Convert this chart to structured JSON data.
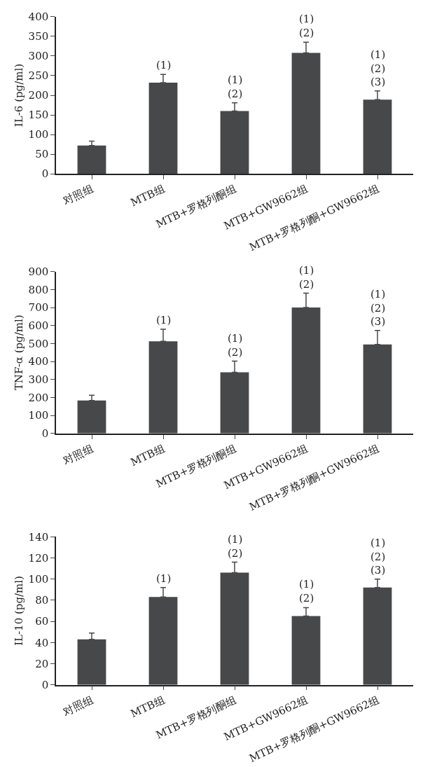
{
  "chart_data": [
    {
      "type": "bar",
      "ylabel": "IL-6 (pg/ml)",
      "categories": [
        "对照组",
        "MTB组",
        "MTB+罗格列酮组",
        "MTB+GW9662组",
        "MTB+罗格列酮+GW9662组"
      ],
      "values": [
        72,
        232,
        160,
        308,
        189
      ],
      "errors": [
        11,
        21,
        21,
        27,
        22
      ],
      "color": "#47484a",
      "ylim": [
        0,
        400
      ],
      "yticks": [
        0,
        50,
        100,
        150,
        200,
        250,
        300,
        350,
        400
      ],
      "annotations": [
        {
          "text": "(1)",
          "x": "MTB组",
          "y": 253
        },
        {
          "text": "(1)\n(2)",
          "x": "MTB+罗格列酮组",
          "y": 181
        },
        {
          "text": "(1)\n(2)",
          "x": "MTB+GW9662组",
          "y": 335
        },
        {
          "text": "(1)\n(2)\n(3)",
          "x": "MTB+罗格列酮+GW9662组",
          "y": 211
        }
      ]
    },
    {
      "type": "bar",
      "ylabel": "TNF-α (pg/ml)",
      "categories": [
        "对照组",
        "MTB组",
        "MTB+罗格列酮组",
        "MTB+GW9662组",
        "MTB+罗格列酮+GW9662组"
      ],
      "values": [
        183,
        512,
        340,
        700,
        495
      ],
      "errors": [
        29,
        68,
        62,
        80,
        78
      ],
      "color": "#47484a",
      "ylim": [
        0,
        900
      ],
      "yticks": [
        0,
        100,
        200,
        300,
        400,
        500,
        600,
        700,
        800,
        900
      ],
      "annotations": [
        {
          "text": "(1)",
          "x": "MTB组",
          "y": 580
        },
        {
          "text": "(1)\n(2)",
          "x": "MTB+罗格列酮组",
          "y": 402
        },
        {
          "text": "(1)\n(2)",
          "x": "MTB+GW9662组",
          "y": 780
        },
        {
          "text": "(1)\n(2)\n(3)",
          "x": "MTB+罗格列酮+GW9662组",
          "y": 573
        }
      ]
    },
    {
      "type": "bar",
      "ylabel": "IL-10 (pg/ml)",
      "categories": [
        "对照组",
        "MTB组",
        "MTB+罗格列酮组",
        "MTB+GW9662组",
        "MTB+罗格列酮+GW9662组"
      ],
      "values": [
        43,
        83,
        106,
        65,
        92
      ],
      "errors": [
        6,
        9,
        10,
        8,
        8
      ],
      "color": "#47484a",
      "ylim": [
        0,
        140
      ],
      "yticks": [
        0,
        20,
        40,
        60,
        80,
        100,
        120,
        140
      ],
      "annotations": [
        {
          "text": "(1)",
          "x": "MTB组",
          "y": 92
        },
        {
          "text": "(1)\n(2)",
          "x": "MTB+罗格列酮组",
          "y": 116
        },
        {
          "text": "(1)\n(2)",
          "x": "MTB+GW9662组",
          "y": 73
        },
        {
          "text": "(1)\n(2)\n(3)",
          "x": "MTB+罗格列酮+GW9662组",
          "y": 100
        }
      ]
    }
  ]
}
